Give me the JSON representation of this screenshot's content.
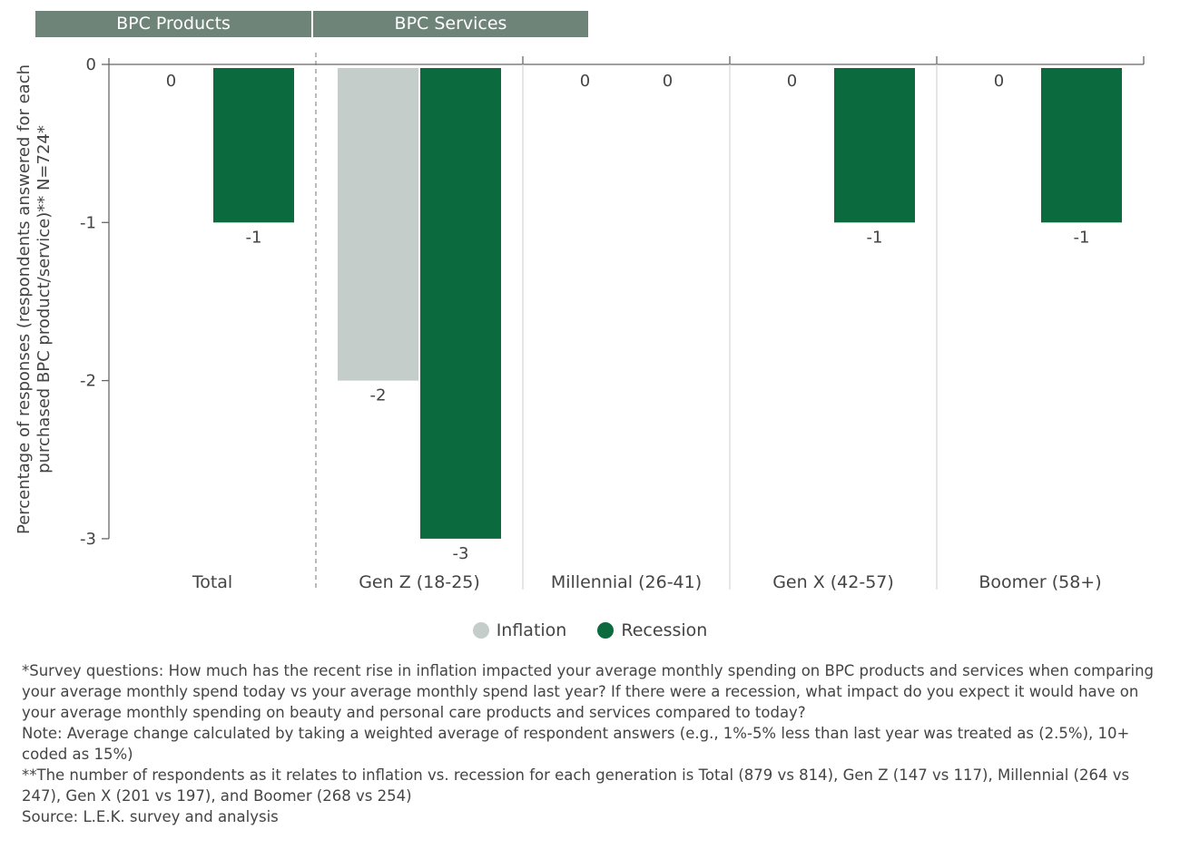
{
  "headers": {
    "products": "BPC Products",
    "services": "BPC Services"
  },
  "chart_data": {
    "type": "bar",
    "ylabel": "Percentage of responses (respondents answered for each purchased BPC product/service)** N=724*",
    "ylim": [
      -3,
      0
    ],
    "yticks": [
      "0",
      "-1",
      "-2",
      "-3"
    ],
    "categories": [
      "Total",
      "Gen Z (18-25)",
      "Millennial (26-41)",
      "Gen X (42-57)",
      "Boomer (58+)"
    ],
    "series": [
      {
        "name": "Inflation",
        "color": "#c5cdcb",
        "values": [
          0,
          -2,
          0,
          0,
          0
        ]
      },
      {
        "name": "Recession",
        "color": "#0b6b3e",
        "values": [
          -1,
          -3,
          0,
          -1,
          -1
        ]
      }
    ],
    "legend": "bottom-center",
    "grid": false
  },
  "notes": [
    "*Survey questions: How much has the recent rise in inflation impacted your average monthly spending on BPC products and services when comparing your average monthly spend today vs your average monthly spend last year? If there were a recession, what impact do you expect it would have on your average monthly spending on beauty and personal care products and services compared to today?",
    "Note: Average change calculated by taking a weighted average of respondent answers (e.g., 1%-5% less than last year was treated as (2.5%), 10+ coded as 15%)",
    "**The number of respondents as it relates to inflation vs. recession for each generation is Total (879 vs 814), Gen Z (147 vs 117), Millennial (264 vs 247), Gen X (201 vs 197), and Boomer (268 vs 254)",
    "Source: L.E.K. survey and analysis"
  ]
}
